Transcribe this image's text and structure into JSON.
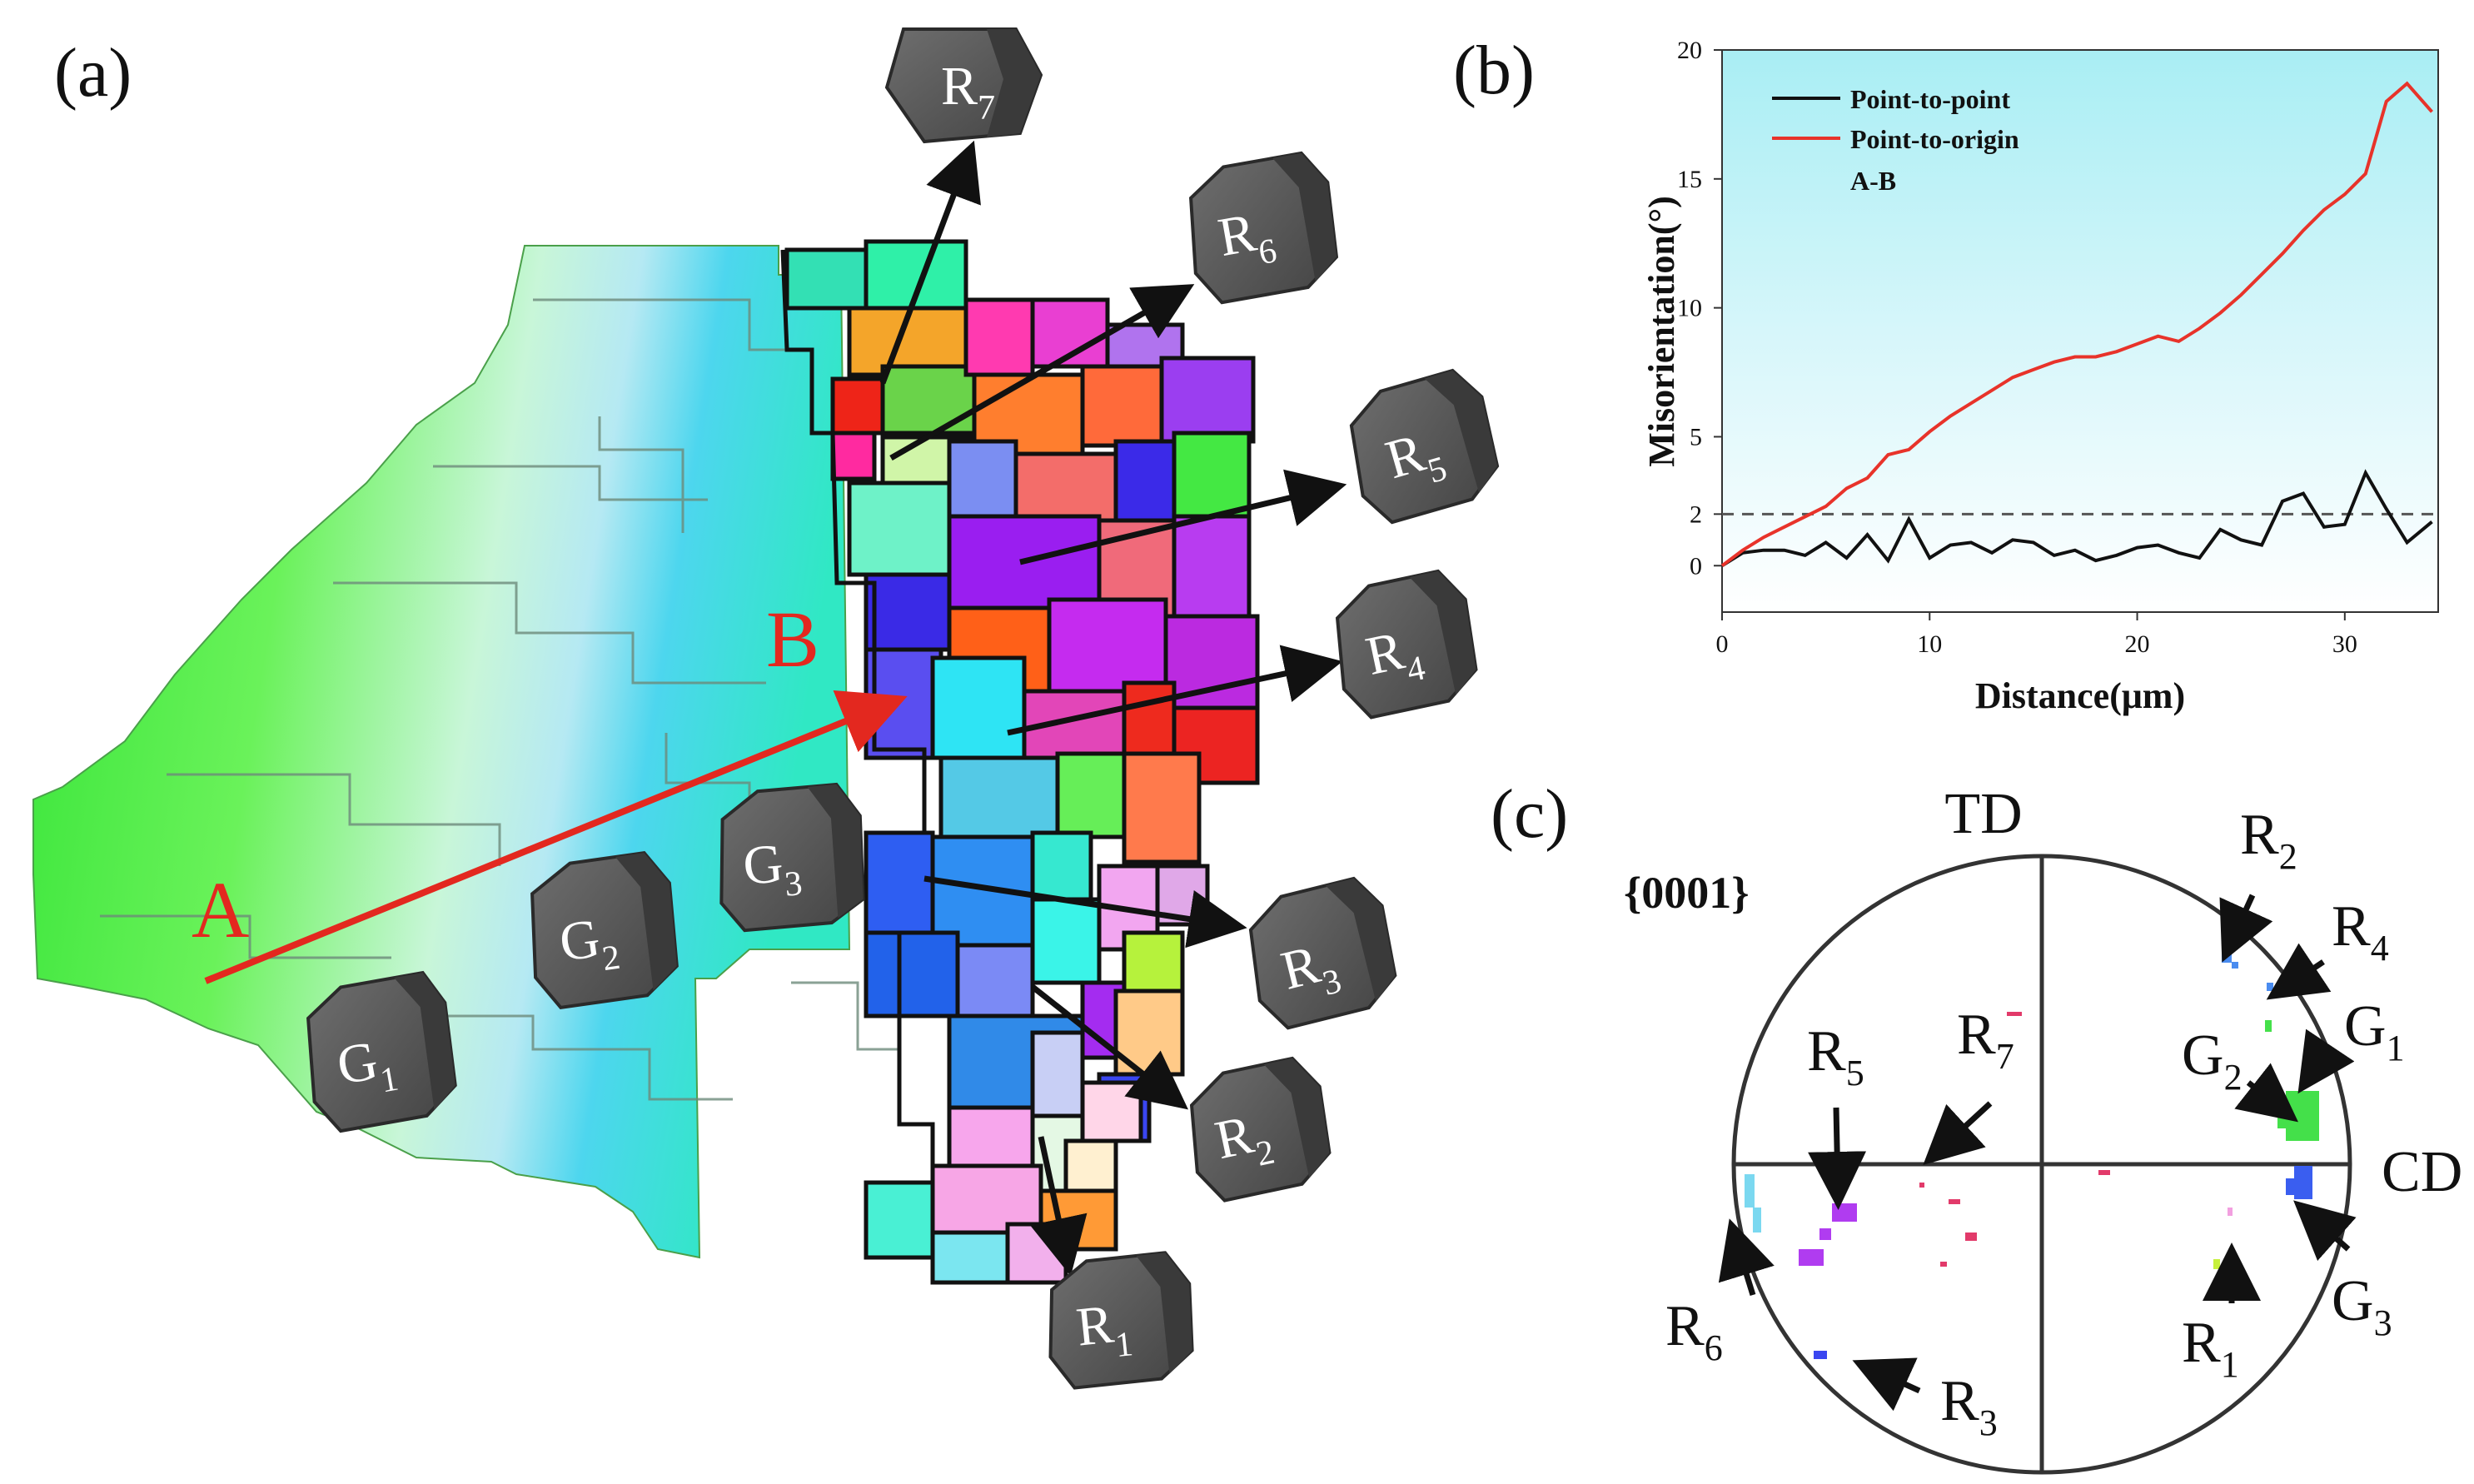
{
  "figure": {
    "panel_a": {
      "label": "(a)",
      "line_start": "A",
      "line_end": "B",
      "crystals": [
        {
          "main": "G",
          "sub": "1"
        },
        {
          "main": "G",
          "sub": "2"
        },
        {
          "main": "G",
          "sub": "3"
        },
        {
          "main": "R",
          "sub": "1"
        },
        {
          "main": "R",
          "sub": "2"
        },
        {
          "main": "R",
          "sub": "3"
        },
        {
          "main": "R",
          "sub": "4"
        },
        {
          "main": "R",
          "sub": "5"
        },
        {
          "main": "R",
          "sub": "6"
        },
        {
          "main": "R",
          "sub": "7"
        }
      ]
    },
    "panel_b": {
      "label": "(b)"
    },
    "panel_c": {
      "label": "(c)",
      "plane": "{0001}",
      "axis_td": "TD",
      "axis_cd": "CD",
      "markers": [
        {
          "main": "R",
          "sub": "2"
        },
        {
          "main": "R",
          "sub": "4"
        },
        {
          "main": "G",
          "sub": "1"
        },
        {
          "main": "G",
          "sub": "2"
        },
        {
          "main": "R",
          "sub": "5"
        },
        {
          "main": "R",
          "sub": "7"
        },
        {
          "main": "R",
          "sub": "6"
        },
        {
          "main": "R",
          "sub": "3"
        },
        {
          "main": "R",
          "sub": "1"
        },
        {
          "main": "G",
          "sub": "3"
        }
      ]
    }
  },
  "chart_data": {
    "type": "line",
    "title": "",
    "xlabel": "Distance(μm)",
    "ylabel": "Misorientation(°)",
    "xlim": [
      0,
      34.5
    ],
    "ylim": [
      -2,
      20
    ],
    "xticks": [
      "0",
      "10",
      "20",
      "30"
    ],
    "yticks": [
      "0",
      "2",
      "5",
      "10",
      "15",
      "20"
    ],
    "reference_line_y": 2,
    "legend": [
      "Point-to-point",
      "Point-to-origin",
      "A-B"
    ],
    "series": [
      {
        "name": "Point-to-point",
        "color": "#111111",
        "x": [
          0,
          1,
          2,
          3,
          4,
          5,
          6,
          7,
          8,
          9,
          10,
          11,
          12,
          13,
          14,
          15,
          16,
          17,
          18,
          19,
          20,
          21,
          22,
          23,
          24,
          25,
          26,
          27,
          28,
          29,
          30,
          31,
          32,
          33,
          34.2
        ],
        "values": [
          0,
          0.5,
          0.6,
          0.6,
          0.4,
          0.9,
          0.3,
          1.2,
          0.2,
          1.8,
          0.3,
          0.8,
          0.9,
          0.5,
          1.0,
          0.9,
          0.4,
          0.6,
          0.2,
          0.4,
          0.7,
          0.8,
          0.5,
          0.3,
          1.4,
          1.0,
          0.8,
          2.5,
          2.8,
          1.5,
          1.6,
          3.6,
          2.2,
          0.9,
          1.7
        ]
      },
      {
        "name": "Point-to-origin",
        "color": "#e8332a",
        "x": [
          0,
          1,
          2,
          3,
          4,
          5,
          6,
          7,
          8,
          9,
          10,
          11,
          12,
          13,
          14,
          15,
          16,
          17,
          18,
          19,
          20,
          21,
          22,
          23,
          24,
          25,
          26,
          27,
          28,
          29,
          30,
          31,
          32,
          33,
          34.2
        ],
        "values": [
          0,
          0.6,
          1.1,
          1.5,
          1.9,
          2.3,
          3.0,
          3.4,
          4.3,
          4.5,
          5.2,
          5.8,
          6.3,
          6.8,
          7.3,
          7.6,
          7.9,
          8.1,
          8.1,
          8.3,
          8.6,
          8.9,
          8.7,
          9.2,
          9.8,
          10.5,
          11.3,
          12.1,
          13.0,
          13.8,
          14.4,
          15.2,
          18.0,
          18.7,
          17.6
        ]
      }
    ]
  }
}
